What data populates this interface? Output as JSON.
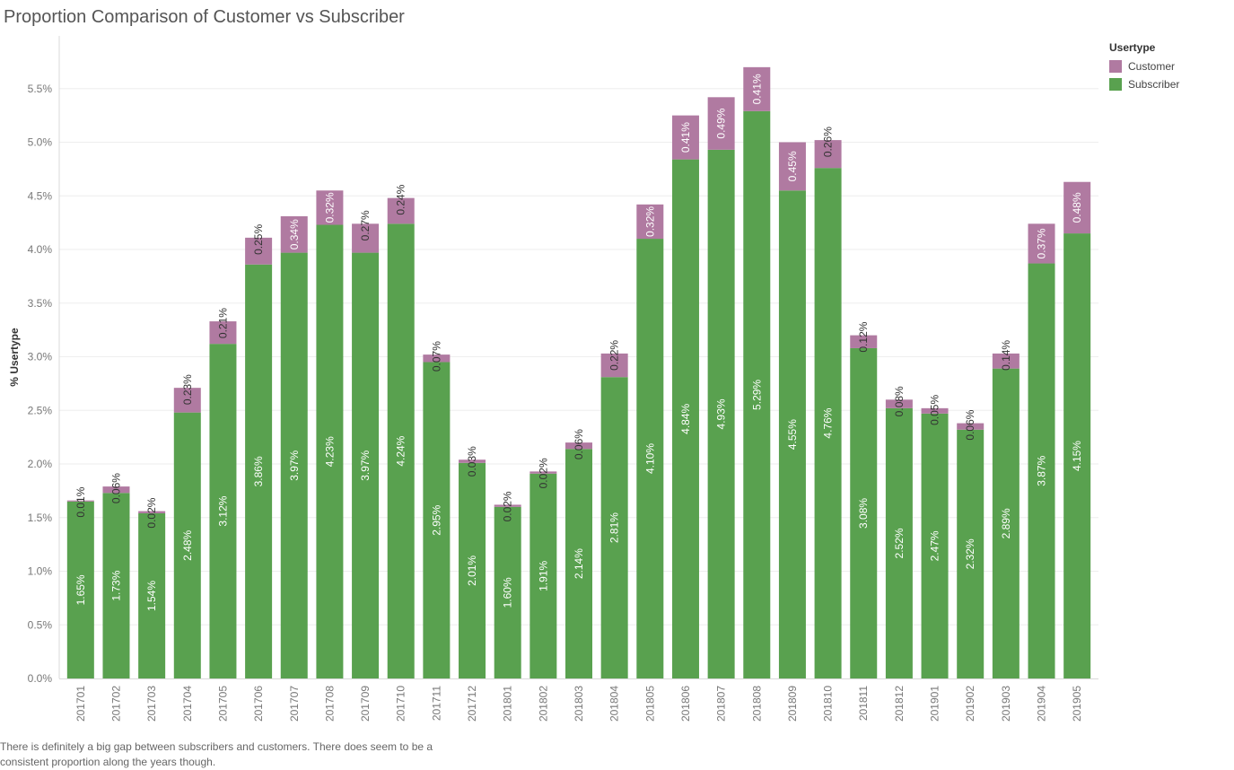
{
  "chart_data": {
    "type": "bar",
    "stacked": true,
    "title": "Proportion Comparison of Customer vs Subscriber",
    "ylabel": "% Usertype",
    "xlabel": "",
    "ylim": [
      0,
      6.0
    ],
    "yticks": [
      "0.0%",
      "0.5%",
      "1.0%",
      "1.5%",
      "2.0%",
      "2.5%",
      "3.0%",
      "3.5%",
      "4.0%",
      "4.5%",
      "5.0%",
      "5.5%"
    ],
    "ytick_values": [
      0,
      0.5,
      1.0,
      1.5,
      2.0,
      2.5,
      3.0,
      3.5,
      4.0,
      4.5,
      5.0,
      5.5
    ],
    "grid": true,
    "legend_title": "Usertype",
    "legend_position": "top-right",
    "categories": [
      "201701",
      "201702",
      "201703",
      "201704",
      "201705",
      "201706",
      "201707",
      "201708",
      "201709",
      "201710",
      "201711",
      "201712",
      "201801",
      "201802",
      "201803",
      "201804",
      "201805",
      "201806",
      "201807",
      "201808",
      "201809",
      "201810",
      "201811",
      "201812",
      "201901",
      "201902",
      "201903",
      "201904",
      "201905"
    ],
    "series": [
      {
        "name": "Subscriber",
        "color": "#59a14f",
        "values": [
          1.65,
          1.73,
          1.54,
          2.48,
          3.12,
          3.86,
          3.97,
          4.23,
          3.97,
          4.24,
          2.95,
          2.01,
          1.6,
          1.91,
          2.14,
          2.81,
          4.1,
          4.84,
          4.93,
          5.29,
          4.55,
          4.76,
          3.08,
          2.52,
          2.47,
          2.32,
          2.89,
          3.87,
          4.15
        ],
        "labels": [
          "1.65%",
          "1.73%",
          "1.54%",
          "2.48%",
          "3.12%",
          "3.86%",
          "3.97%",
          "4.23%",
          "3.97%",
          "4.24%",
          "2.95%",
          "2.01%",
          "1.60%",
          "1.91%",
          "2.14%",
          "2.81%",
          "4.10%",
          "4.84%",
          "4.93%",
          "5.29%",
          "4.55%",
          "4.76%",
          "3.08%",
          "2.52%",
          "2.47%",
          "2.32%",
          "2.89%",
          "3.87%",
          "4.15%"
        ]
      },
      {
        "name": "Customer",
        "color": "#b07aa1",
        "values": [
          0.01,
          0.06,
          0.02,
          0.23,
          0.21,
          0.25,
          0.34,
          0.32,
          0.27,
          0.24,
          0.07,
          0.03,
          0.02,
          0.02,
          0.06,
          0.22,
          0.32,
          0.41,
          0.49,
          0.41,
          0.45,
          0.26,
          0.12,
          0.08,
          0.05,
          0.06,
          0.14,
          0.37,
          0.48
        ],
        "labels": [
          "0.01%",
          "0.06%",
          "0.02%",
          "0.23%",
          "0.21%",
          "0.25%",
          "0.34%",
          "0.32%",
          "0.27%",
          "0.24%",
          "0.07%",
          "0.03%",
          "0.02%",
          "0.02%",
          "0.06%",
          "0.22%",
          "0.32%",
          "0.41%",
          "0.49%",
          "0.41%",
          "0.45%",
          "0.26%",
          "0.12%",
          "0.08%",
          "0.05%",
          "0.06%",
          "0.14%",
          "0.37%",
          "0.48%"
        ]
      }
    ]
  },
  "caption": "There is definitely a big gap between subscribers and customers. There does seem to be a consistent proportion along the years though."
}
